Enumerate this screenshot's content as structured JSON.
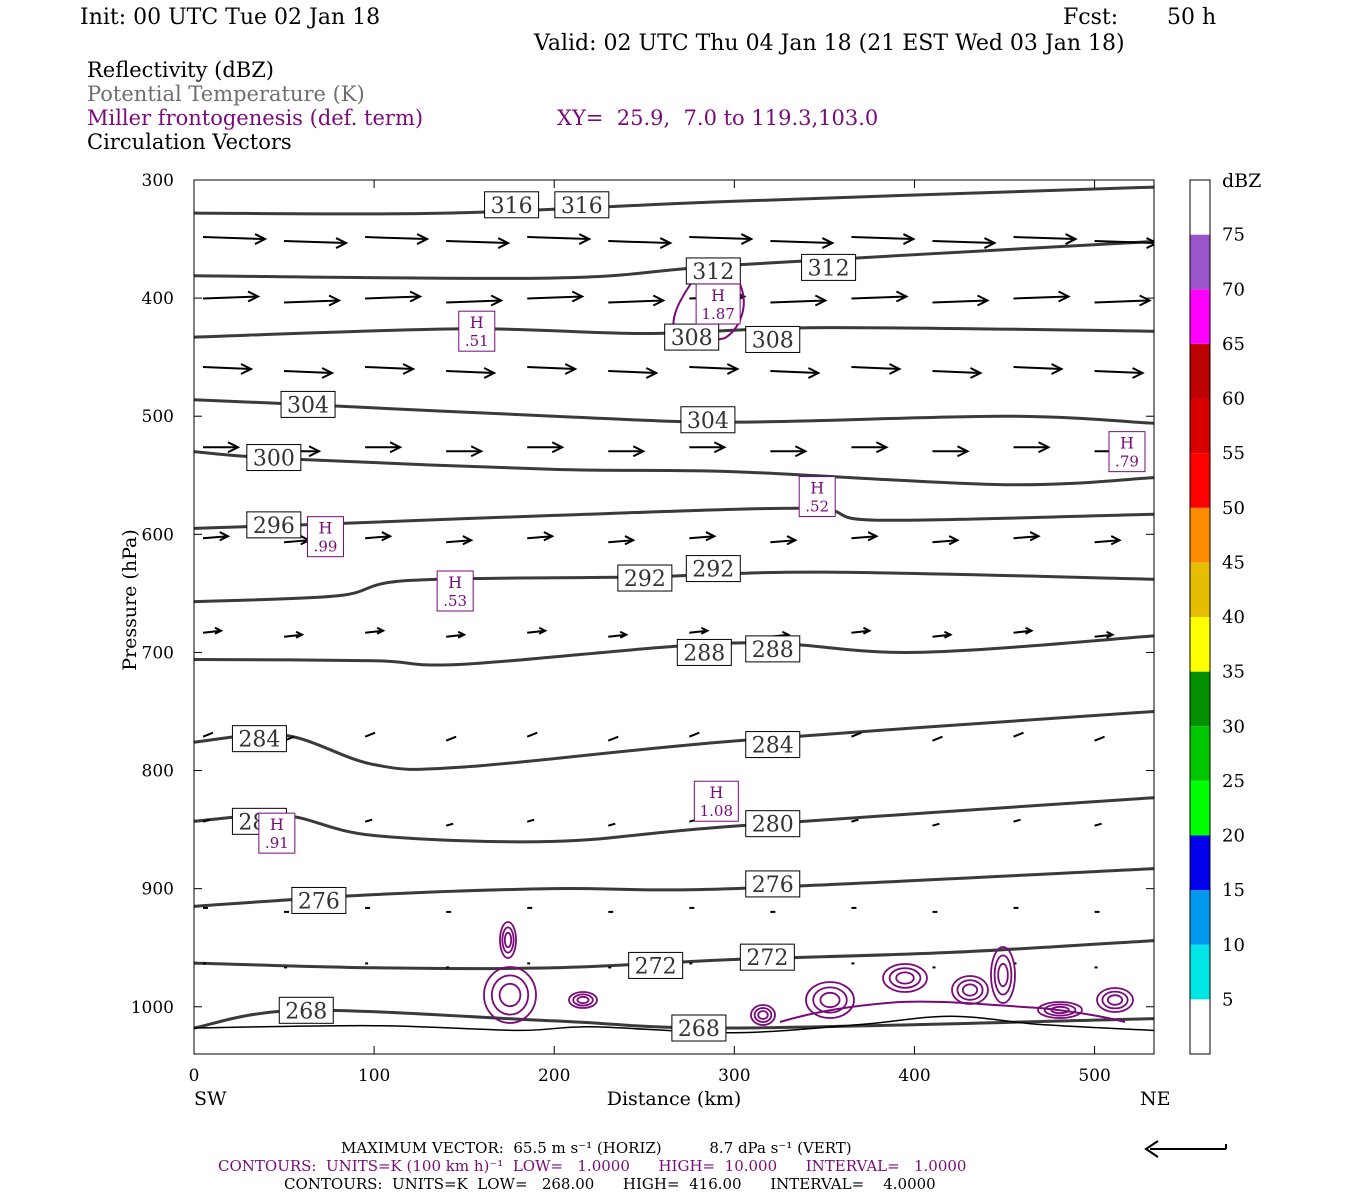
{
  "header": {
    "init": "Init: 00 UTC Tue 02 Jan 18",
    "fcst_label": "Fcst:",
    "fcst_value": "50 h",
    "valid": "Valid: 02 UTC Thu 04 Jan 18 (21 EST Wed 03 Jan 18)"
  },
  "legend": {
    "reflectivity": "Reflectivity (dBZ)",
    "theta": "Potential Temperature (K)",
    "miller": "Miller frontogenesis (def. term)",
    "xy": "XY=  25.9,  7.0 to 119.3,103.0",
    "circulation": "Circulation Vectors"
  },
  "colors": {
    "theta": "#3a3a3a",
    "frontogenesis": "#7a0a7a",
    "vectors": "#000000",
    "gray_text": "#6e6e6e"
  },
  "axes": {
    "xlabel": "Distance (km)",
    "ylabel": "Pressure (hPa)",
    "left_end": "SW",
    "right_end": "NE"
  },
  "colorbar": {
    "unit": "dBZ",
    "levels": [
      "5",
      "10",
      "15",
      "20",
      "25",
      "30",
      "35",
      "40",
      "45",
      "50",
      "55",
      "60",
      "65",
      "70",
      "75"
    ],
    "colors": [
      "#ffffff",
      "#00e6e6",
      "#0099ee",
      "#0000ee",
      "#00ff00",
      "#00c800",
      "#009000",
      "#ffff00",
      "#e6bd00",
      "#ff8c00",
      "#ff0000",
      "#d80000",
      "#bd0000",
      "#ff00ff",
      "#9955c9",
      "#ffffff"
    ]
  },
  "footer": {
    "max_vector": "MAXIMUM VECTOR:  65.5 m s⁻¹ (HORIZ)          8.7 dPa s⁻¹ (VERT)",
    "contours_fronto": "CONTOURS:  UNITS=K (100 km h)⁻¹  LOW=   1.0000      HIGH=  10.000      INTERVAL=   1.0000",
    "contours_theta": "CONTOURS:  UNITS=K  LOW=   268.00      HIGH=  416.00      INTERVAL=    4.0000"
  },
  "chart_data": {
    "type": "cross-section",
    "xlim": [
      0,
      533
    ],
    "ylim": [
      1040,
      300
    ],
    "x_ticks": [
      0,
      100,
      200,
      300,
      400,
      500
    ],
    "y_ticks": [
      300,
      400,
      500,
      600,
      700,
      800,
      900,
      1000
    ],
    "theta_contours": [
      {
        "value": 316,
        "points": [
          [
            0,
            328
          ],
          [
            140,
            328
          ],
          [
            300,
            318
          ],
          [
            533,
            306
          ]
        ],
        "labels": [
          [
            163,
            321
          ],
          [
            202,
            321
          ]
        ]
      },
      {
        "value": 312,
        "points": [
          [
            0,
            381
          ],
          [
            200,
            383
          ],
          [
            300,
            372
          ],
          [
            533,
            352
          ]
        ],
        "labels": [
          [
            275,
            377
          ],
          [
            339,
            374
          ]
        ]
      },
      {
        "value": 308,
        "points": [
          [
            0,
            433
          ],
          [
            150,
            426
          ],
          [
            250,
            430
          ],
          [
            350,
            425
          ],
          [
            533,
            428
          ]
        ],
        "labels": [
          [
            263,
            433
          ],
          [
            308,
            435
          ]
        ]
      },
      {
        "value": 304,
        "points": [
          [
            0,
            486
          ],
          [
            60,
            490
          ],
          [
            200,
            500
          ],
          [
            300,
            505
          ],
          [
            450,
            500
          ],
          [
            533,
            506
          ]
        ],
        "labels": [
          [
            50,
            490
          ],
          [
            272,
            503
          ]
        ]
      },
      {
        "value": 300,
        "points": [
          [
            0,
            530
          ],
          [
            50,
            536
          ],
          [
            200,
            545
          ],
          [
            300,
            547
          ],
          [
            450,
            558
          ],
          [
            533,
            552
          ]
        ],
        "labels": [
          [
            31,
            535
          ],
          [
            0,
            0
          ]
        ]
      },
      {
        "value": 296,
        "points": [
          [
            0,
            595
          ],
          [
            60,
            592
          ],
          [
            200,
            584
          ],
          [
            340,
            578
          ],
          [
            380,
            588
          ],
          [
            533,
            583
          ]
        ],
        "labels": [
          [
            31,
            592
          ],
          [
            0,
            0
          ]
        ]
      },
      {
        "value": 292,
        "points": [
          [
            0,
            657
          ],
          [
            80,
            652
          ],
          [
            120,
            639
          ],
          [
            250,
            636
          ],
          [
            350,
            632
          ],
          [
            533,
            638
          ]
        ],
        "labels": [
          [
            237,
            637
          ],
          [
            275,
            629
          ]
        ]
      },
      {
        "value": 288,
        "points": [
          [
            0,
            706
          ],
          [
            100,
            707
          ],
          [
            150,
            710
          ],
          [
            300,
            692
          ],
          [
            400,
            700
          ],
          [
            533,
            686
          ]
        ],
        "labels": [
          [
            270,
            700
          ],
          [
            308,
            697
          ]
        ]
      },
      {
        "value": 284,
        "points": [
          [
            0,
            776
          ],
          [
            50,
            770
          ],
          [
            100,
            795
          ],
          [
            150,
            797
          ],
          [
            300,
            775
          ],
          [
            533,
            750
          ]
        ],
        "labels": [
          [
            23,
            773
          ],
          [
            308,
            778
          ]
        ]
      },
      {
        "value": 280,
        "points": [
          [
            0,
            843
          ],
          [
            50,
            838
          ],
          [
            100,
            855
          ],
          [
            200,
            860
          ],
          [
            300,
            847
          ],
          [
            533,
            823
          ]
        ],
        "labels": [
          [
            23,
            843
          ],
          [
            308,
            845
          ]
        ]
      },
      {
        "value": 276,
        "points": [
          [
            0,
            915
          ],
          [
            100,
            905
          ],
          [
            200,
            900
          ],
          [
            300,
            900
          ],
          [
            533,
            883
          ]
        ],
        "labels": [
          [
            56,
            910
          ],
          [
            308,
            896
          ]
        ]
      },
      {
        "value": 272,
        "points": [
          [
            0,
            963
          ],
          [
            100,
            967
          ],
          [
            200,
            967
          ],
          [
            300,
            960
          ],
          [
            420,
            954
          ],
          [
            533,
            944
          ]
        ],
        "labels": [
          [
            243,
            965
          ],
          [
            305,
            958
          ]
        ]
      },
      {
        "value": 268,
        "points": [
          [
            0,
            1018
          ],
          [
            60,
            1003
          ],
          [
            200,
            1012
          ],
          [
            300,
            1018
          ],
          [
            533,
            1010
          ]
        ],
        "labels": [
          [
            49,
            1003
          ],
          [
            267,
            1018
          ]
        ]
      }
    ],
    "frontogenesis_maxima": [
      {
        "label": "H",
        "value": "1.87",
        "x": 291,
        "p": 405
      },
      {
        "label": "H",
        "value": ".51",
        "x": 157,
        "p": 428
      },
      {
        "label": "H",
        "value": ".79",
        "x": 518,
        "p": 530
      },
      {
        "label": "H",
        "value": ".52",
        "x": 346,
        "p": 568
      },
      {
        "label": "H",
        "value": ".99",
        "x": 73,
        "p": 602
      },
      {
        "label": "H",
        "value": ".53",
        "x": 145,
        "p": 648
      },
      {
        "label": "H",
        "value": "1.08",
        "x": 290,
        "p": 826
      },
      {
        "label": "H",
        "value": ".91",
        "x": 46,
        "p": 853
      }
    ],
    "max_vector_horiz_m_s": 65.5,
    "max_vector_vert_dPa_s": 8.7,
    "fronto_contours": {
      "units": "K (100 km h)^-1",
      "low": 1.0,
      "high": 10.0,
      "interval": 1.0
    },
    "theta_contour_spec": {
      "units": "K",
      "low": 268.0,
      "high": 416.0,
      "interval": 4.0
    }
  }
}
